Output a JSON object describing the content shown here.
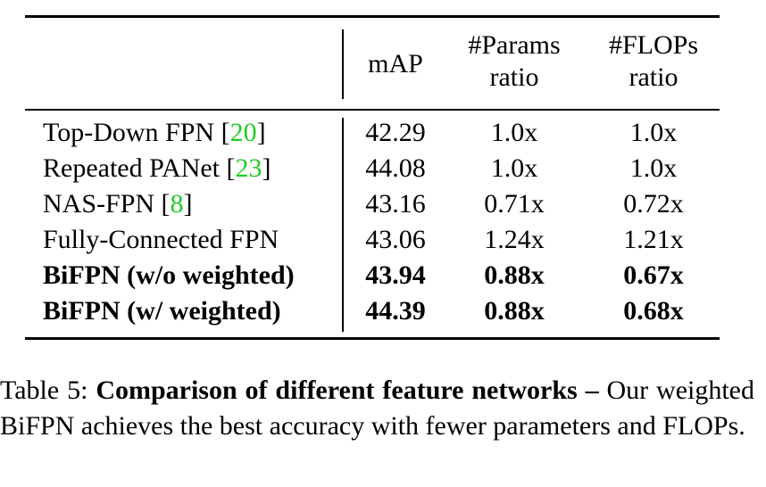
{
  "table": {
    "headers": {
      "map": "mAP",
      "params_line1": "#Params",
      "params_line2": "ratio",
      "flops_line1": "#FLOPs",
      "flops_line2": "ratio"
    },
    "rows": [
      {
        "name": "Top-Down FPN [",
        "ref": "20",
        "name_end": "]",
        "map": "42.29",
        "params": "1.0x",
        "flops": "1.0x",
        "bold": false
      },
      {
        "name": "Repeated PANet [",
        "ref": "23",
        "name_end": "]",
        "map": "44.08",
        "params": "1.0x",
        "flops": "1.0x",
        "bold": false
      },
      {
        "name": "NAS-FPN [",
        "ref": "8",
        "name_end": "]",
        "map": "43.16",
        "params": "0.71x",
        "flops": "0.72x",
        "bold": false
      },
      {
        "name": "Fully-Connected FPN",
        "ref": "",
        "name_end": "",
        "map": "43.06",
        "params": "1.24x",
        "flops": "1.21x",
        "bold": false
      },
      {
        "name": "BiFPN (w/o weighted)",
        "ref": "",
        "name_end": "",
        "map": "43.94",
        "params": "0.88x",
        "flops": "0.67x",
        "bold": true
      },
      {
        "name": "BiFPN (w/ weighted)",
        "ref": "",
        "name_end": "",
        "map": "44.39",
        "params": "0.88x",
        "flops": "0.68x",
        "bold": true
      }
    ]
  },
  "caption": {
    "label": "Table 5:",
    "bold": "Comparison of different feature networks –",
    "text": "Our weighted BiFPN achieves the best accuracy with fewer parameters and FLOPs."
  },
  "colors": {
    "reference_link": "#22cc22"
  }
}
